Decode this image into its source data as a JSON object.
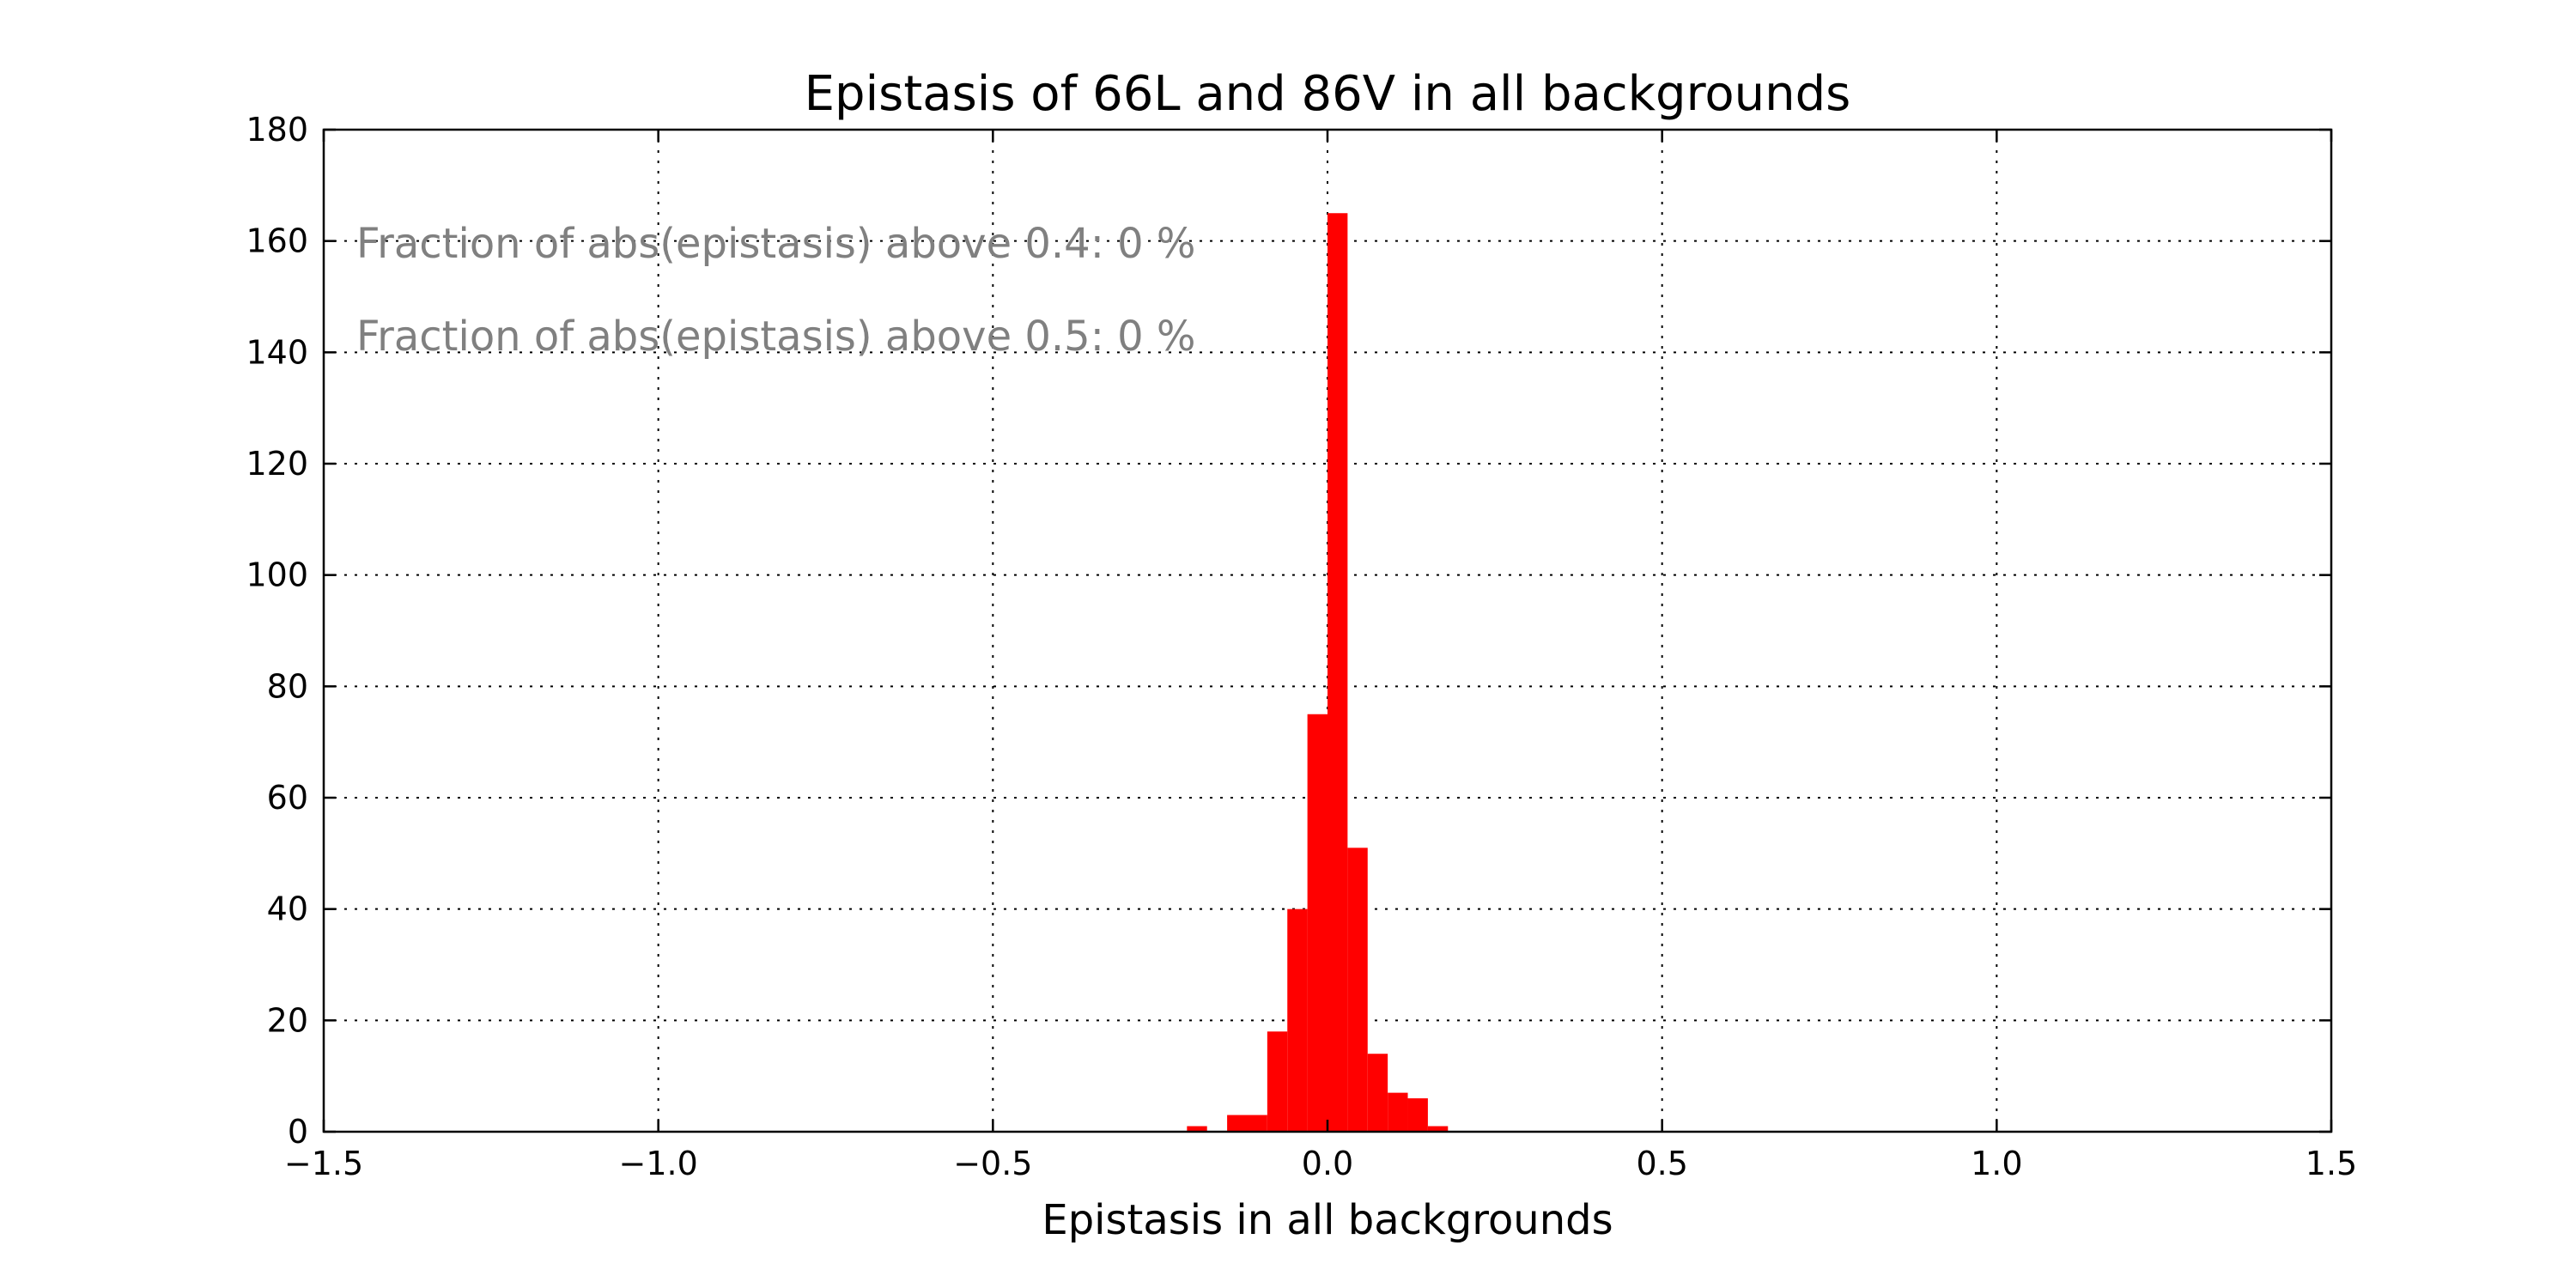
{
  "chart_data": {
    "type": "bar",
    "title": "Epistasis of 66L and 86V in all backgrounds",
    "xlabel": "Epistasis in all backgrounds",
    "ylabel": "",
    "xlim": [
      -1.5,
      1.5
    ],
    "ylim": [
      0,
      180
    ],
    "x_ticks": [
      -1.5,
      -1.0,
      -0.5,
      0.0,
      0.5,
      1.0,
      1.5
    ],
    "x_tick_labels": [
      "−1.5",
      "−1.0",
      "−0.5",
      "0.0",
      "0.5",
      "1.0",
      "1.5"
    ],
    "y_ticks": [
      0,
      20,
      40,
      60,
      80,
      100,
      120,
      140,
      160,
      180
    ],
    "y_tick_labels": [
      "0",
      "20",
      "40",
      "60",
      "80",
      "100",
      "120",
      "140",
      "160",
      "180"
    ],
    "grid": true,
    "bar_color": "#ff0000",
    "bins": [
      {
        "x0": -0.21,
        "x1": -0.18,
        "count": 1
      },
      {
        "x0": -0.15,
        "x1": -0.09,
        "count": 3
      },
      {
        "x0": -0.09,
        "x1": -0.06,
        "count": 18
      },
      {
        "x0": -0.06,
        "x1": -0.03,
        "count": 40
      },
      {
        "x0": -0.03,
        "x1": 0.0,
        "count": 75
      },
      {
        "x0": 0.0,
        "x1": 0.03,
        "count": 165
      },
      {
        "x0": 0.03,
        "x1": 0.06,
        "count": 51
      },
      {
        "x0": 0.06,
        "x1": 0.09,
        "count": 14
      },
      {
        "x0": 0.09,
        "x1": 0.12,
        "count": 7
      },
      {
        "x0": 0.12,
        "x1": 0.15,
        "count": 6
      },
      {
        "x0": 0.15,
        "x1": 0.18,
        "count": 1
      }
    ],
    "annotations": [
      "Fraction of abs(epistasis) above 0.4: 0 %",
      "Fraction of abs(epistasis) above 0.5: 0 %"
    ]
  }
}
